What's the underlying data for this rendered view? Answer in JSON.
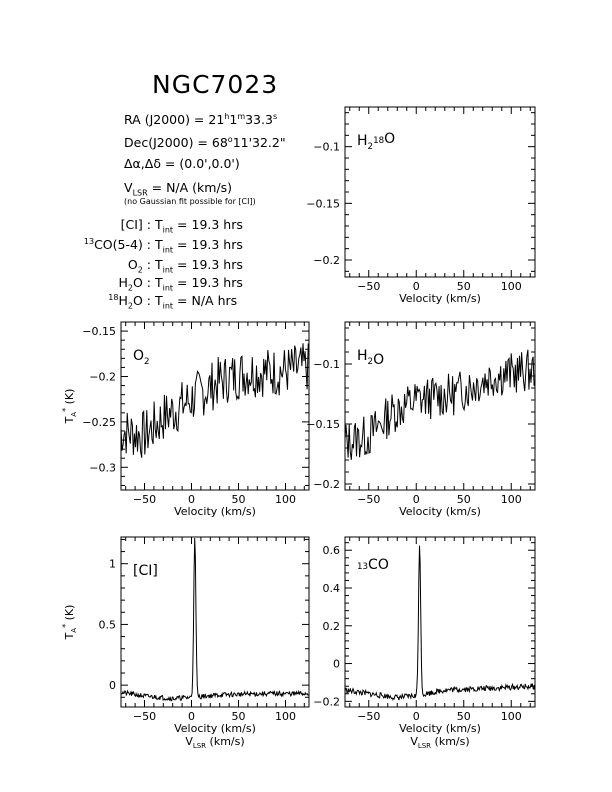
{
  "header": {
    "title": "NGC7023",
    "ra": {
      "label": "RA (J2000) = ",
      "h": "21",
      "m": "1",
      "s": "33.3"
    },
    "dec": {
      "label": "Dec(J2000) = ",
      "deg": "68",
      "rest": "11'32.2\""
    },
    "offset": {
      "label": "Δα,Δδ = ",
      "value": "(0.0',0.0')"
    },
    "vlsr": {
      "label": "V",
      "sub": "LSR",
      "value": " = N/A  (km/s)"
    },
    "note": "(no Gaussian fit possible for [CI])",
    "tint": [
      {
        "pre": "",
        "sup": "",
        "mid": "[CI]",
        "sub": "",
        "value": "19.3 hrs"
      },
      {
        "pre": "",
        "sup": "13",
        "mid": "CO(5-4)",
        "sub": "",
        "value": "19.3 hrs"
      },
      {
        "pre": "",
        "sup": "",
        "mid": "O",
        "sub": "2",
        "value": "19.3 hrs"
      },
      {
        "pre": "",
        "sup": "",
        "mid": "H",
        "sub": "2",
        "tail": "O",
        "value": "19.3 hrs"
      },
      {
        "pre": "",
        "sup": "18",
        "mid": "H",
        "sub": "2",
        "tail": "O",
        "value": "N/A hrs"
      }
    ],
    "tint_label": "T",
    "tint_sub": "int"
  },
  "chart_data": [
    {
      "id": "h218o",
      "type": "line",
      "label": {
        "parts": [
          [
            "H",
            ""
          ],
          [
            "2",
            "sub"
          ],
          [
            "18",
            "sup"
          ],
          [
            "O",
            ""
          ]
        ]
      },
      "xlim": [
        -75,
        125
      ],
      "ylim": [
        -0.215,
        -0.065
      ],
      "xticks": [
        -50,
        0,
        50,
        100
      ],
      "yticks": [
        -0.1,
        -0.15,
        -0.2
      ],
      "ytick_labels": [
        "−0.1",
        "−0.15",
        "−0.2"
      ],
      "xlabel": "Velocity (km/s)",
      "ylabel": "",
      "series": []
    },
    {
      "id": "o2",
      "type": "line",
      "label": {
        "parts": [
          [
            "O",
            ""
          ],
          [
            "2",
            "sub"
          ]
        ]
      },
      "xlim": [
        -75,
        125
      ],
      "ylim": [
        -0.325,
        -0.14
      ],
      "xticks": [
        -50,
        0,
        50,
        100
      ],
      "yticks": [
        -0.15,
        -0.2,
        -0.25,
        -0.3
      ],
      "ytick_labels": [
        "−0.15",
        "−0.2",
        "−0.25",
        "−0.3"
      ],
      "xlabel": "Velocity (km/s)",
      "ylabel": "T_A* (K)",
      "series": [
        {
          "trend": [
            [
              -75,
              -0.26
            ],
            [
              -50,
              -0.265
            ],
            [
              -30,
              -0.245
            ],
            [
              0,
              -0.225
            ],
            [
              30,
              -0.205
            ],
            [
              60,
              -0.195
            ],
            [
              90,
              -0.195
            ],
            [
              125,
              -0.19
            ]
          ],
          "noise": 0.028,
          "step": 1.1,
          "seed": 7
        }
      ]
    },
    {
      "id": "h2o",
      "type": "line",
      "label": {
        "parts": [
          [
            "H",
            ""
          ],
          [
            "2",
            "sub"
          ],
          [
            "O",
            ""
          ]
        ]
      },
      "xlim": [
        -75,
        125
      ],
      "ylim": [
        -0.205,
        -0.065
      ],
      "xticks": [
        -50,
        0,
        50,
        100
      ],
      "yticks": [
        -0.1,
        -0.15,
        -0.2
      ],
      "ytick_labels": [
        "−0.1",
        "−0.15",
        "−0.2"
      ],
      "xlabel": "Velocity (km/s)",
      "ylabel": "",
      "series": [
        {
          "trend": [
            [
              -75,
              -0.165
            ],
            [
              -50,
              -0.16
            ],
            [
              -25,
              -0.14
            ],
            [
              0,
              -0.13
            ],
            [
              40,
              -0.125
            ],
            [
              80,
              -0.11
            ],
            [
              125,
              -0.105
            ]
          ],
          "noise": 0.018,
          "step": 1.1,
          "seed": 13
        }
      ]
    },
    {
      "id": "ci",
      "type": "line",
      "label": {
        "parts": [
          [
            "[CI]",
            ""
          ]
        ]
      },
      "xlim": [
        -75,
        125
      ],
      "ylim": [
        -0.18,
        1.22
      ],
      "xticks": [
        -50,
        0,
        50,
        100
      ],
      "yticks": [
        0,
        0.5,
        1
      ],
      "ytick_labels": [
        "0",
        "0.5",
        "1"
      ],
      "xlabel": "Velocity (km/s)",
      "xlabel2": "V_LSR (km/s)",
      "ylabel": "T_A* (K)",
      "series": [
        {
          "trend": [
            [
              -75,
              -0.06
            ],
            [
              -50,
              -0.09
            ],
            [
              -20,
              -0.11
            ],
            [
              0,
              -0.1
            ],
            [
              30,
              -0.08
            ],
            [
              80,
              -0.07
            ],
            [
              125,
              -0.07
            ]
          ],
          "noise": 0.02,
          "step": 0.7,
          "seed": 21,
          "peaks": [
            {
              "x": 3.5,
              "h": 1.3,
              "w": 1.6
            }
          ]
        }
      ]
    },
    {
      "id": "co13",
      "type": "line",
      "label": {
        "parts": [
          [
            "13",
            "sup"
          ],
          [
            "CO",
            ""
          ]
        ]
      },
      "xlim": [
        -75,
        125
      ],
      "ylim": [
        -0.23,
        0.67
      ],
      "xticks": [
        -50,
        0,
        50,
        100
      ],
      "yticks": [
        -0.2,
        0,
        0.2,
        0.4,
        0.6
      ],
      "ytick_labels": [
        "−0.2",
        "0",
        "0.2",
        "0.4",
        "0.6"
      ],
      "xlabel": "Velocity (km/s)",
      "xlabel2": "V_LSR (km/s)",
      "ylabel": "",
      "series": [
        {
          "trend": [
            [
              -75,
              -0.14
            ],
            [
              -50,
              -0.16
            ],
            [
              -20,
              -0.18
            ],
            [
              0,
              -0.17
            ],
            [
              30,
              -0.14
            ],
            [
              80,
              -0.13
            ],
            [
              125,
              -0.12
            ]
          ],
          "noise": 0.015,
          "step": 0.7,
          "seed": 33,
          "peaks": [
            {
              "x": 3.5,
              "h": 0.8,
              "w": 1.6
            }
          ]
        }
      ]
    }
  ]
}
